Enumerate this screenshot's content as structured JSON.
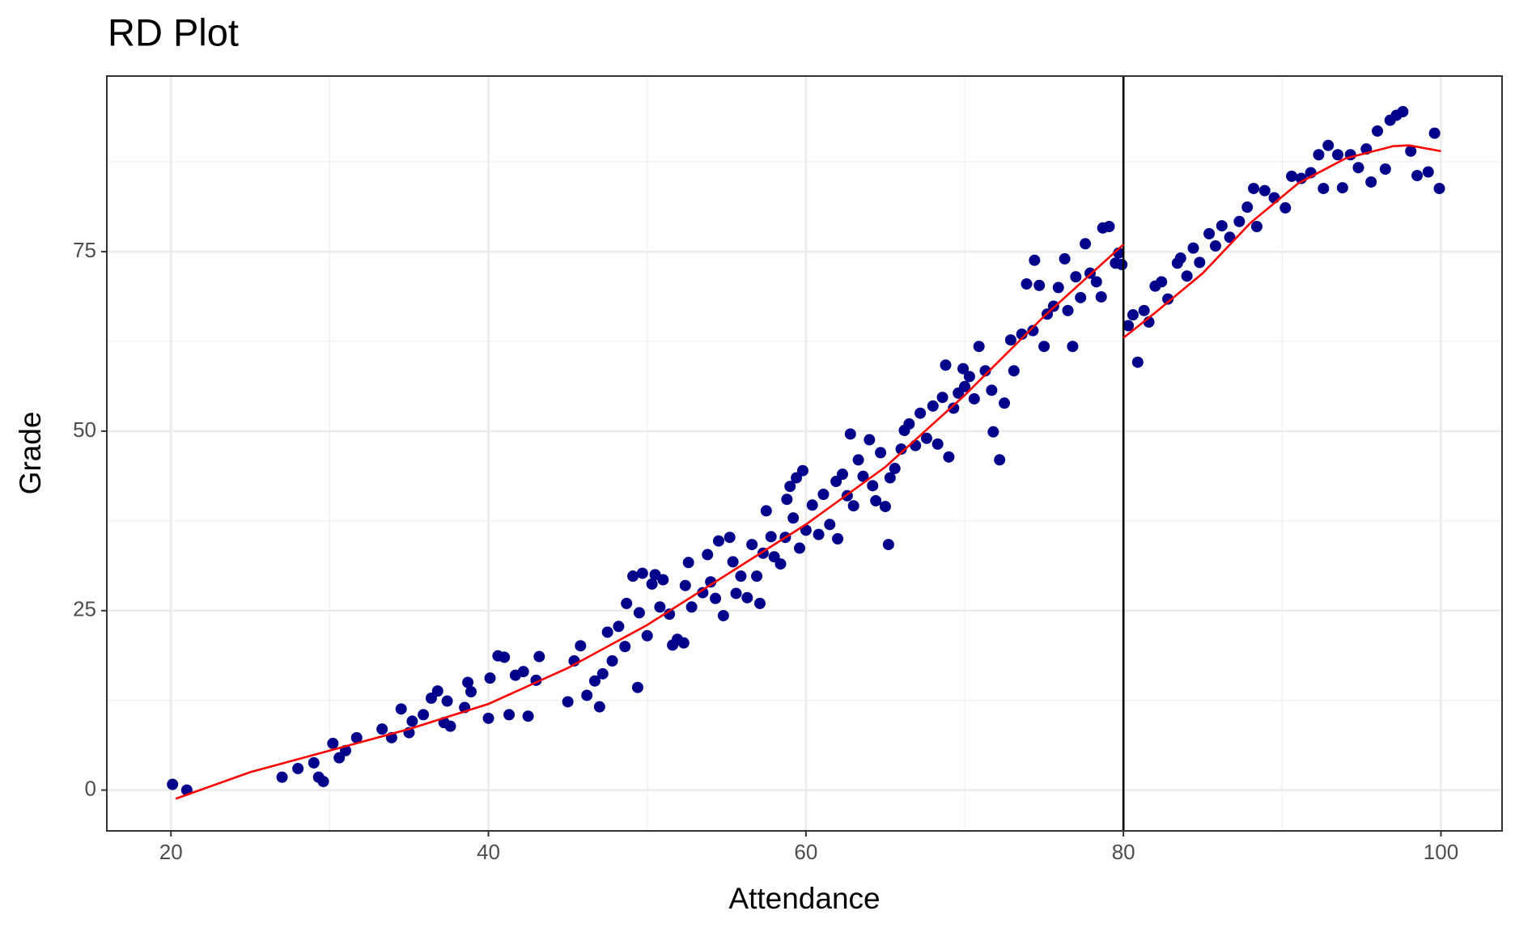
{
  "chart_data": {
    "type": "scatter",
    "title": "RD Plot",
    "xlabel": "Attendance",
    "ylabel": "Grade",
    "xlim": [
      15.96,
      103.85
    ],
    "ylim": [
      -5.68,
      99.46
    ],
    "xticks": [
      20,
      40,
      60,
      80,
      100
    ],
    "yticks": [
      0,
      25,
      50,
      75
    ],
    "xminor": [
      30,
      50,
      70,
      90
    ],
    "yminor": [
      12.5,
      37.5,
      62.5,
      87.5
    ],
    "grid": true,
    "cutoff": 80,
    "series": [
      {
        "kind": "points",
        "color": "#00008B",
        "x": [
          20.1,
          21,
          27,
          28,
          29,
          29.3,
          29.6,
          30.2,
          30.6,
          31,
          31.7,
          33.3,
          33.9,
          34.5,
          35,
          35.2,
          35.9,
          36.4,
          36.8,
          37.2,
          37.4,
          37.6,
          38.7,
          38.9,
          38.5,
          40,
          40.1,
          40.6,
          41,
          41.3,
          41.7,
          42.2,
          42.5,
          43,
          43.2,
          45,
          45.4,
          45.8,
          46.2,
          46.7,
          47,
          47.2,
          47.5,
          47.8,
          48.2,
          48.6,
          48.7,
          49.1,
          49.4,
          49.5,
          49.7,
          50,
          50.3,
          50.5,
          50.8,
          51,
          51.4,
          51.6,
          51.9,
          52.3,
          52.4,
          52.6,
          52.8,
          53.5,
          53.8,
          54,
          54.3,
          54.5,
          54.8,
          55.2,
          55.4,
          55.6,
          55.9,
          56.3,
          56.6,
          56.9,
          57.1,
          57.3,
          57.5,
          57.8,
          58,
          58.4,
          58.7,
          58.8,
          59,
          59.2,
          59.4,
          59.6,
          59.8,
          60,
          60.4,
          60.8,
          61.1,
          61.5,
          61.9,
          62,
          62.3,
          62.6,
          62.8,
          63,
          63.3,
          63.6,
          64,
          64.2,
          64.4,
          64.7,
          65,
          65.2,
          65.3,
          65.6,
          66,
          66.2,
          66.5,
          66.9,
          67.2,
          67.6,
          68,
          68.3,
          68.6,
          68.8,
          69,
          69.3,
          69.6,
          69.9,
          70,
          70.3,
          70.6,
          70.9,
          71.3,
          71.7,
          71.8,
          72.2,
          72.5,
          72.9,
          73.1,
          73.6,
          73.9,
          74.3,
          74.4,
          74.7,
          75,
          75.2,
          75.6,
          75.9,
          76.3,
          76.5,
          76.8,
          77,
          77.3,
          77.6,
          77.9,
          78.3,
          78.6,
          78.7,
          79.1,
          79.5,
          79.7,
          79.9,
          80.3,
          80.6,
          80.9,
          81.3,
          81.6,
          82,
          82.4,
          82.8,
          83.4,
          83.6,
          84,
          84.4,
          84.8,
          85.4,
          85.8,
          86.2,
          86.7,
          87.3,
          87.8,
          88.2,
          88.4,
          88.9,
          89.5,
          90.2,
          90.6,
          91.2,
          91.8,
          92.3,
          92.6,
          92.9,
          93.5,
          93.8,
          94.3,
          94.8,
          95.3,
          95.6,
          96,
          96.5,
          96.8,
          97.2,
          97.6,
          98.1,
          98.5,
          99.2,
          99.6,
          99.9
        ],
        "values": [
          0.8,
          0,
          1.8,
          3,
          3.8,
          1.8,
          1.2,
          6.5,
          4.5,
          5.5,
          7.3,
          8.5,
          7.3,
          11.3,
          8,
          9.6,
          10.5,
          12.8,
          13.8,
          9.4,
          12.4,
          8.9,
          15,
          13.7,
          11.5,
          10,
          15.6,
          18.7,
          18.5,
          10.5,
          16,
          16.5,
          10.3,
          15.3,
          18.6,
          12.3,
          18,
          20.1,
          13.2,
          15.2,
          11.6,
          16.2,
          22,
          18,
          22.8,
          20,
          26,
          29.8,
          14.3,
          24.7,
          30.2,
          21.5,
          28.7,
          30,
          25.5,
          29.3,
          24.5,
          20.2,
          21,
          20.5,
          28.5,
          31.7,
          25.5,
          27.5,
          32.8,
          29,
          26.7,
          34.7,
          24.3,
          35.2,
          31.8,
          27.4,
          29.8,
          26.8,
          34.2,
          29.8,
          26,
          33,
          38.9,
          35.3,
          32.5,
          31.5,
          35.2,
          40.5,
          42.3,
          37.9,
          43.5,
          33.7,
          44.5,
          36.2,
          39.7,
          35.6,
          41.2,
          37,
          43,
          35,
          44,
          41,
          49.6,
          39.6,
          46,
          43.7,
          48.8,
          42.4,
          40.3,
          47,
          39.5,
          34.2,
          43.5,
          44.8,
          47.5,
          50.1,
          51,
          48,
          52.5,
          49,
          53.5,
          48.2,
          54.7,
          59.2,
          46.4,
          53.2,
          55.3,
          58.7,
          56.2,
          57.6,
          54.5,
          61.8,
          58.4,
          55.7,
          49.9,
          46,
          53.9,
          62.7,
          58.4,
          63.5,
          70.5,
          64,
          73.8,
          70.3,
          61.8,
          66.3,
          67.4,
          70,
          74,
          66.8,
          61.8,
          71.5,
          68.6,
          76.1,
          72,
          70.8,
          68.7,
          78.3,
          78.5,
          73.4,
          74.8,
          73.2,
          64.7,
          66.2,
          59.6,
          66.8,
          65.2,
          70.2,
          70.8,
          68.4,
          73.4,
          74.1,
          71.6,
          75.5,
          73.5,
          77.5,
          75.8,
          78.6,
          77,
          79.2,
          81.2,
          83.8,
          78.5,
          83.5,
          82.5,
          81.1,
          85.5,
          85.2,
          86,
          88.5,
          83.8,
          89.8,
          88.5,
          83.9,
          88.5,
          86.7,
          89.3,
          84.7,
          91.8,
          86.5,
          93.3,
          94,
          94.5,
          89,
          85.6,
          86.1,
          91.5,
          83.8
        ]
      },
      {
        "kind": "line",
        "color": "#FF0000",
        "x": [
          20.3,
          25,
          30,
          35,
          40,
          45,
          50,
          55,
          60,
          65,
          70,
          75,
          80
        ],
        "values": [
          -1.2,
          2.5,
          5.5,
          8.5,
          12,
          17,
          23,
          30,
          37,
          45,
          55,
          66,
          76
        ]
      },
      {
        "kind": "line",
        "color": "#FF0000",
        "x": [
          80,
          82,
          85,
          88,
          91,
          94,
          97,
          98,
          100
        ],
        "values": [
          63,
          66.5,
          72,
          79,
          84.5,
          88,
          89.7,
          89.8,
          89
        ]
      }
    ]
  }
}
